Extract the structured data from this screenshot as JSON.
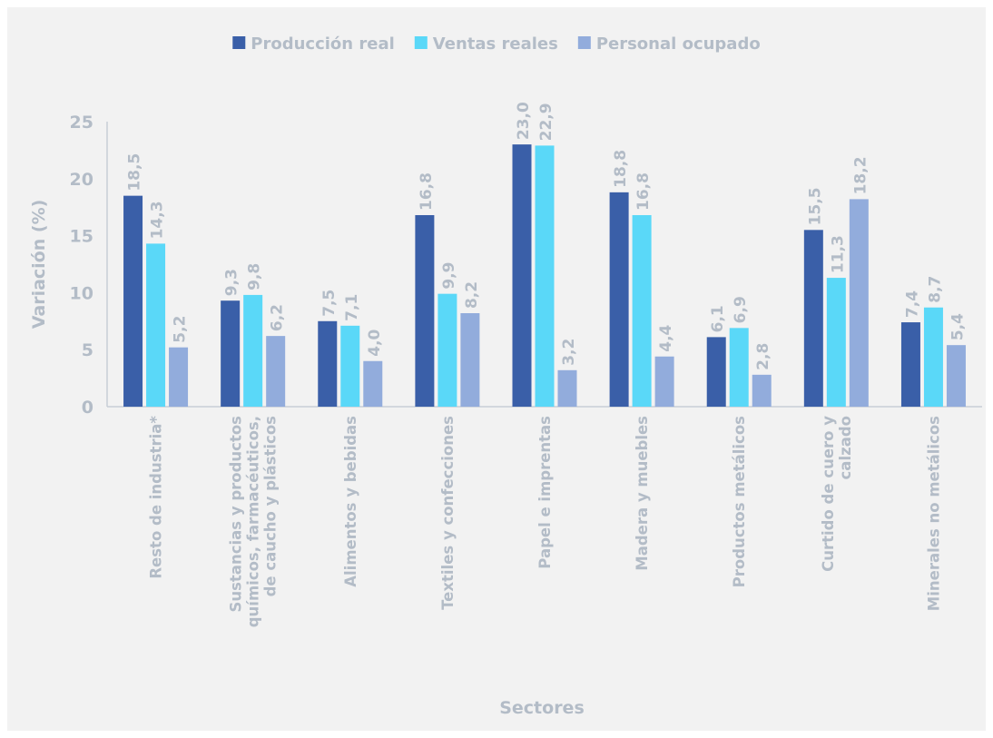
{
  "chart_data": {
    "type": "bar",
    "xlabel": "Sectores",
    "ylabel": "Variación (%)",
    "ylim": [
      0,
      25
    ],
    "yticks": [
      0,
      5,
      10,
      15,
      20,
      25
    ],
    "grid": false,
    "legend_position": "top-center",
    "categories": [
      "Resto de industria*",
      "Sustancias y productos químicos, farmacéuticos, de caucho y plásticos",
      "Alimentos y bebidas",
      "Textiles y confecciones",
      "Papel e imprentas",
      "Madera y muebles",
      "Productos metálicos",
      "Curtido de cuero y calzado",
      "Minerales no metálicos"
    ],
    "category_lines": [
      [
        "Resto de industria*"
      ],
      [
        "Sustancias y productos",
        "químicos, farmacéuticos,",
        "de caucho y plásticos"
      ],
      [
        "Alimentos y bebidas"
      ],
      [
        "Textiles y confecciones"
      ],
      [
        "Papel e imprentas"
      ],
      [
        "Madera y muebles"
      ],
      [
        "Productos metálicos"
      ],
      [
        "Curtido de cuero y",
        "calzado"
      ],
      [
        "Minerales no metálicos"
      ]
    ],
    "series": [
      {
        "name": "Producción real",
        "color": "#3a5fa8",
        "values": [
          18.5,
          9.3,
          7.5,
          16.8,
          23.0,
          18.8,
          6.1,
          15.5,
          7.4
        ],
        "labels": [
          "18,5",
          "9,3",
          "7,5",
          "16,8",
          "23,0",
          "18,8",
          "6,1",
          "15,5",
          "7,4"
        ]
      },
      {
        "name": "Ventas reales",
        "color": "#5ad8f8",
        "values": [
          14.3,
          9.8,
          7.1,
          9.9,
          22.9,
          16.8,
          6.9,
          11.3,
          8.7
        ],
        "labels": [
          "14,3",
          "9,8",
          "7,1",
          "9,9",
          "22,9",
          "16,8",
          "6,9",
          "11,3",
          "8,7"
        ]
      },
      {
        "name": "Personal ocupado",
        "color": "#92acdc",
        "values": [
          5.2,
          6.2,
          4.0,
          8.2,
          3.2,
          4.4,
          2.8,
          18.2,
          5.4
        ],
        "labels": [
          "5,2",
          "6,2",
          "4,0",
          "8,2",
          "3,2",
          "4,4",
          "2,8",
          "18,2",
          "5,4"
        ]
      }
    ]
  }
}
